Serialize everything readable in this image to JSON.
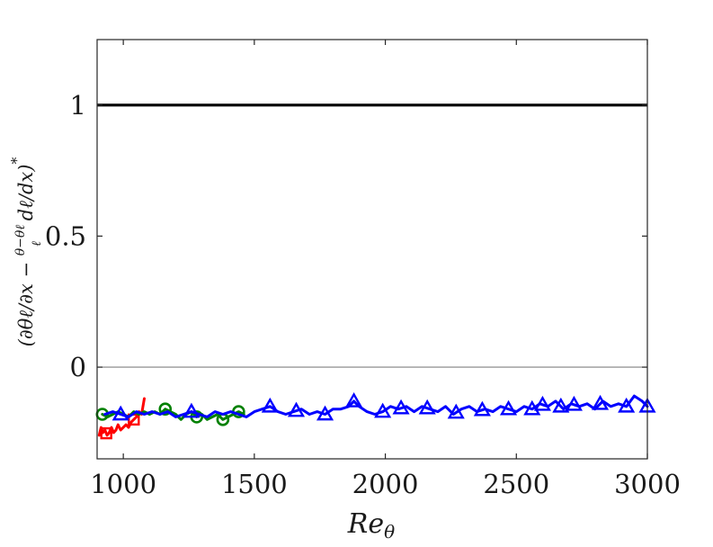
{
  "chart_data": {
    "type": "line",
    "title": "",
    "xlabel": "Re_θ",
    "xlabel_parts": {
      "base": "Re",
      "sub": "θ"
    },
    "ylabel": "(∂θℓ/∂x − (θ−θℓ)/ℓ · dℓ/dx)*",
    "ylabel_parts": {
      "lead": "(∂θℓ/∂x − ",
      "frac_num": "θ−θℓ",
      "frac_den": "ℓ",
      "tail": " dℓ/dx)",
      "sup": "*"
    },
    "xlim": [
      900,
      3000
    ],
    "ylim": [
      -0.35,
      1.25
    ],
    "xticks": [
      1000,
      1500,
      2000,
      2500,
      3000
    ],
    "yticks": [
      0,
      0.5,
      1
    ],
    "xtick_labels": [
      "1000",
      "1500",
      "2000",
      "2500",
      "3000"
    ],
    "ytick_labels": [
      "0",
      "0.5",
      "1"
    ],
    "grid": false,
    "reference_lines": [
      {
        "y": 1,
        "color": "#000000",
        "style": "thick"
      },
      {
        "y": 0,
        "color": "#808080",
        "style": "thin"
      }
    ],
    "series": [
      {
        "color": "#ff0000",
        "marker": "square",
        "x": [
          908,
          915,
          922,
          930,
          938,
          946,
          955,
          963,
          972,
          980,
          990,
          1000,
          1010,
          1020,
          1030,
          1040,
          1050,
          1060,
          1070,
          1080
        ],
        "y": [
          -0.26,
          -0.23,
          -0.25,
          -0.24,
          -0.26,
          -0.25,
          -0.23,
          -0.25,
          -0.24,
          -0.22,
          -0.24,
          -0.23,
          -0.22,
          -0.23,
          -0.21,
          -0.2,
          -0.19,
          -0.17,
          -0.18,
          -0.12
        ],
        "marker_x": [
          935,
          1040
        ]
      },
      {
        "color": "#008000",
        "marker": "circle",
        "x": [
          920,
          940,
          960,
          980,
          1000,
          1020,
          1040,
          1060,
          1080,
          1100,
          1120,
          1140,
          1160,
          1180,
          1200,
          1220,
          1240,
          1260,
          1280,
          1300,
          1320,
          1340,
          1360,
          1380,
          1400,
          1420,
          1440,
          1460
        ],
        "y": [
          -0.18,
          -0.19,
          -0.18,
          -0.17,
          -0.18,
          -0.19,
          -0.17,
          -0.18,
          -0.17,
          -0.18,
          -0.17,
          -0.18,
          -0.16,
          -0.17,
          -0.18,
          -0.2,
          -0.18,
          -0.17,
          -0.19,
          -0.18,
          -0.2,
          -0.19,
          -0.18,
          -0.2,
          -0.19,
          -0.18,
          -0.17,
          -0.18
        ],
        "marker_x": [
          920,
          1160,
          1280,
          1380,
          1440
        ]
      },
      {
        "color": "#0000ff",
        "marker": "triangle",
        "x": [
          930,
          960,
          990,
          1020,
          1050,
          1080,
          1110,
          1140,
          1170,
          1200,
          1230,
          1260,
          1290,
          1320,
          1350,
          1380,
          1410,
          1440,
          1470,
          1500,
          1530,
          1560,
          1590,
          1620,
          1650,
          1680,
          1710,
          1740,
          1770,
          1800,
          1830,
          1860,
          1880,
          1900,
          1930,
          1960,
          1990,
          2020,
          2050,
          2080,
          2110,
          2140,
          2170,
          2200,
          2230,
          2260,
          2290,
          2320,
          2350,
          2380,
          2410,
          2440,
          2470,
          2500,
          2530,
          2560,
          2590,
          2620,
          2650,
          2680,
          2710,
          2740,
          2770,
          2800,
          2830,
          2860,
          2890,
          2920,
          2950,
          2980,
          3000
        ],
        "y": [
          -0.18,
          -0.17,
          -0.18,
          -0.19,
          -0.17,
          -0.18,
          -0.17,
          -0.18,
          -0.17,
          -0.19,
          -0.18,
          -0.17,
          -0.18,
          -0.19,
          -0.17,
          -0.18,
          -0.17,
          -0.18,
          -0.19,
          -0.17,
          -0.16,
          -0.15,
          -0.17,
          -0.18,
          -0.17,
          -0.16,
          -0.18,
          -0.17,
          -0.18,
          -0.16,
          -0.16,
          -0.15,
          -0.13,
          -0.15,
          -0.17,
          -0.18,
          -0.17,
          -0.15,
          -0.16,
          -0.15,
          -0.17,
          -0.15,
          -0.16,
          -0.17,
          -0.15,
          -0.18,
          -0.16,
          -0.15,
          -0.17,
          -0.16,
          -0.17,
          -0.15,
          -0.16,
          -0.17,
          -0.15,
          -0.16,
          -0.14,
          -0.15,
          -0.13,
          -0.16,
          -0.14,
          -0.15,
          -0.14,
          -0.16,
          -0.13,
          -0.15,
          -0.14,
          -0.15,
          -0.11,
          -0.13,
          -0.15
        ],
        "marker_x": [
          990,
          1260,
          1560,
          1660,
          1770,
          1880,
          1990,
          2060,
          2160,
          2270,
          2370,
          2470,
          2560,
          2600,
          2670,
          2720,
          2820,
          2920,
          3000
        ]
      }
    ]
  }
}
